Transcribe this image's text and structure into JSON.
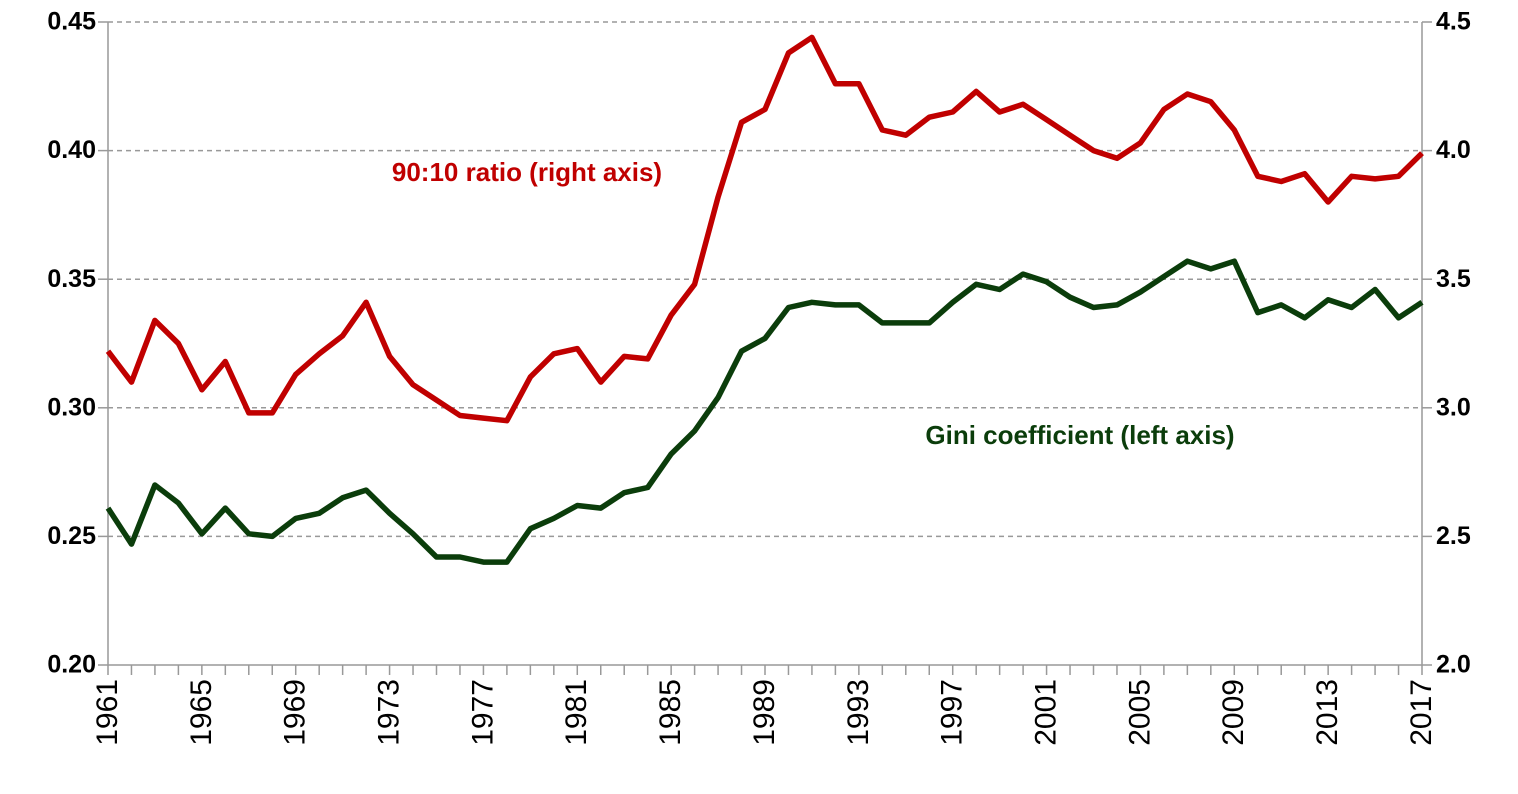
{
  "chart_data": {
    "type": "line",
    "x": [
      1961,
      1962,
      1963,
      1964,
      1965,
      1966,
      1967,
      1968,
      1969,
      1970,
      1971,
      1972,
      1973,
      1974,
      1975,
      1976,
      1977,
      1978,
      1979,
      1980,
      1981,
      1982,
      1983,
      1984,
      1985,
      1986,
      1987,
      1988,
      1989,
      1990,
      1991,
      1992,
      1993,
      1994,
      1995,
      1996,
      1997,
      1998,
      1999,
      2000,
      2001,
      2002,
      2003,
      2004,
      2005,
      2006,
      2007,
      2008,
      2009,
      2010,
      2011,
      2012,
      2013,
      2014,
      2015,
      2016,
      2017
    ],
    "xlim": [
      1961,
      2017
    ],
    "xticks": [
      1961,
      1965,
      1969,
      1973,
      1977,
      1981,
      1985,
      1989,
      1993,
      1997,
      2001,
      2005,
      2009,
      2013,
      2017
    ],
    "ylim": [
      0.2,
      0.45
    ],
    "yticks": [
      {
        "value": 0.2,
        "label": "0.20"
      },
      0.25,
      {
        "value": 0.3,
        "label": "0.30"
      },
      0.35,
      {
        "value": 0.4,
        "label": "0.40"
      },
      0.45
    ],
    "y2lim": [
      2.0,
      4.5
    ],
    "y2ticks": [
      {
        "value": 2.0,
        "label": "2.0"
      },
      2.5,
      {
        "value": 3.0,
        "label": "3.0"
      },
      3.5,
      {
        "value": 4.0,
        "label": "4.0"
      },
      4.5
    ],
    "grid": true,
    "series": [
      {
        "name": "90:10 ratio (right axis)",
        "color": "#c00000",
        "axis": "y2",
        "values": [
          3.22,
          3.1,
          3.34,
          3.25,
          3.07,
          3.18,
          2.98,
          2.98,
          3.13,
          3.21,
          3.28,
          3.41,
          3.2,
          3.09,
          3.03,
          2.97,
          2.96,
          2.95,
          3.12,
          3.21,
          3.23,
          3.1,
          3.2,
          3.19,
          3.36,
          3.48,
          3.82,
          4.11,
          4.16,
          4.38,
          4.44,
          4.26,
          4.26,
          4.08,
          4.06,
          4.13,
          4.15,
          4.23,
          4.15,
          4.18,
          4.12,
          4.06,
          4.0,
          3.97,
          4.03,
          4.16,
          4.22,
          4.19,
          4.08,
          3.9,
          3.88,
          3.91,
          3.8,
          3.9,
          3.89,
          3.9,
          3.99
        ]
      },
      {
        "name": "Gini coefficient (left axis)",
        "color": "#0b3d0b",
        "values": [
          0.261,
          0.247,
          0.27,
          0.263,
          0.251,
          0.261,
          0.251,
          0.25,
          0.257,
          0.259,
          0.265,
          0.268,
          0.259,
          0.251,
          0.242,
          0.242,
          0.24,
          0.24,
          0.253,
          0.257,
          0.262,
          0.261,
          0.267,
          0.269,
          0.282,
          0.291,
          0.304,
          0.322,
          0.327,
          0.339,
          0.341,
          0.34,
          0.34,
          0.333,
          0.333,
          0.333,
          0.341,
          0.348,
          0.346,
          0.352,
          0.349,
          0.343,
          0.339,
          0.34,
          0.345,
          0.351,
          0.357,
          0.354,
          0.357,
          0.337,
          0.34,
          0.335,
          0.342,
          0.339,
          0.346,
          0.335,
          0.341
        ]
      }
    ]
  }
}
